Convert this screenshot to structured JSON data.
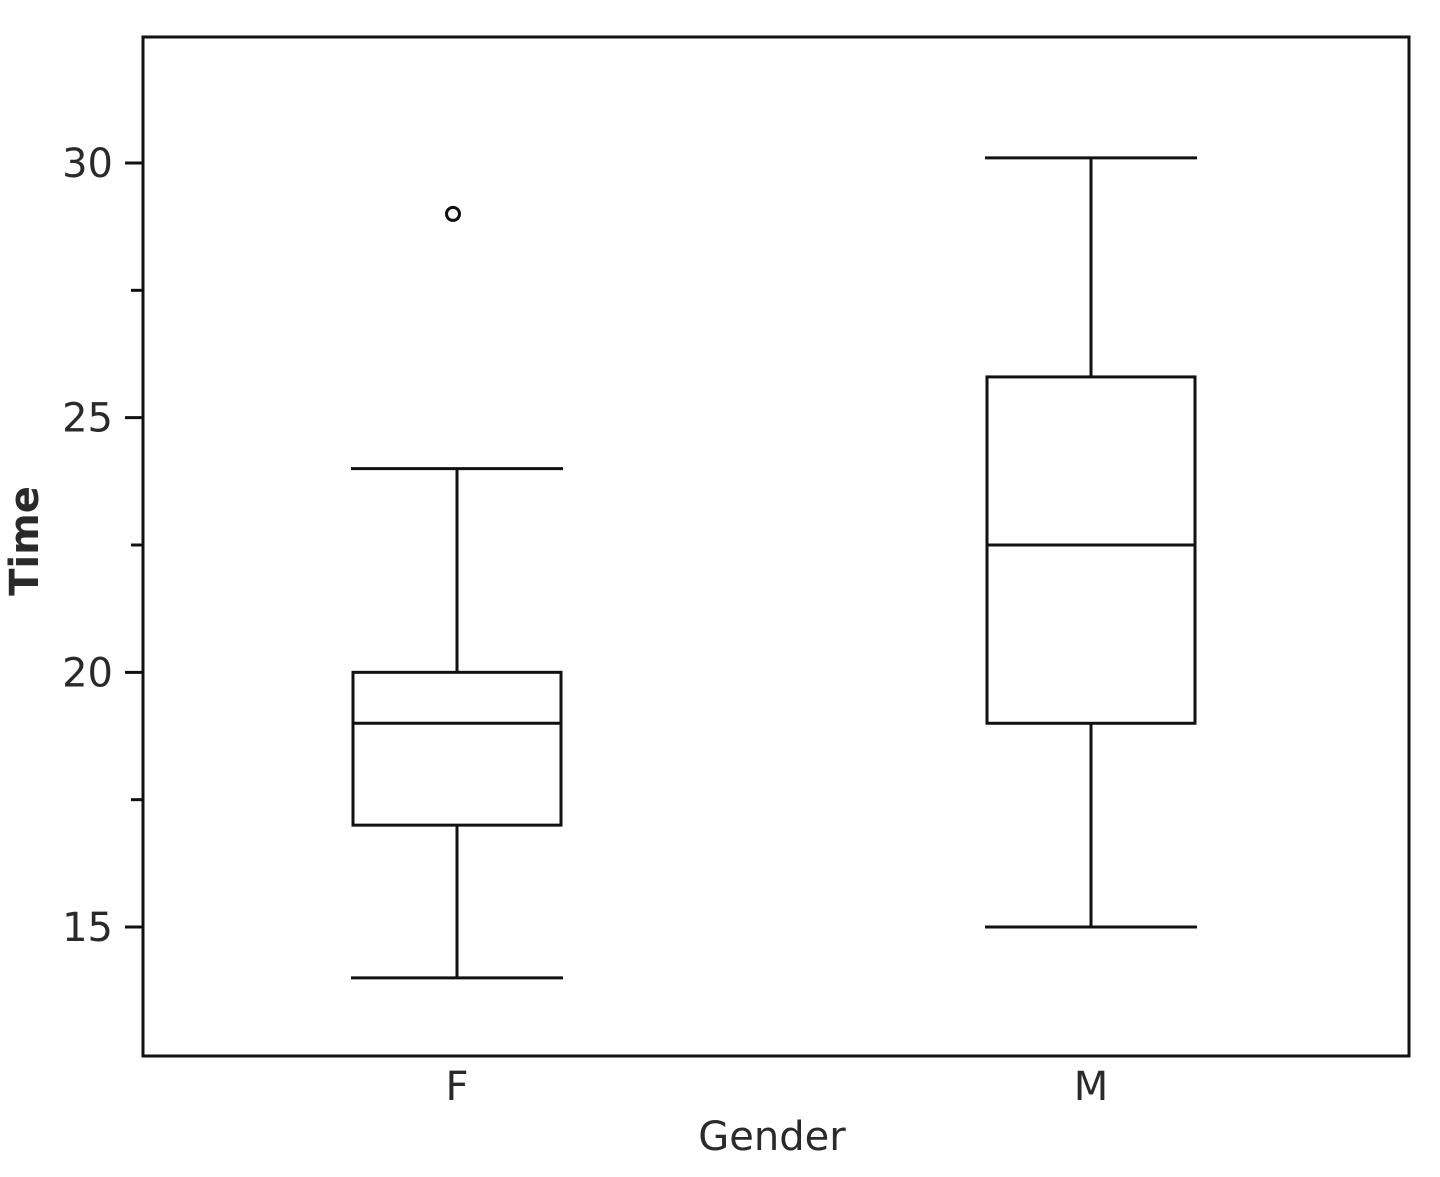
{
  "chart_data": {
    "type": "box",
    "xlabel": "Gender",
    "ylabel": "Time",
    "categories": [
      "F",
      "M"
    ],
    "ylim": [
      12.5,
      32.5
    ],
    "y_ticks": [
      15,
      20,
      25,
      30
    ],
    "y_minor_ticks": [
      17.5,
      22.5,
      27.5
    ],
    "grid": false,
    "boxes": [
      {
        "category": "F",
        "whisker_low": 14,
        "q1": 17,
        "median": 19,
        "q3": 20,
        "whisker_high": 24,
        "outliers": [
          29
        ]
      },
      {
        "category": "M",
        "whisker_low": 15,
        "q1": 19,
        "median": 22.5,
        "q3": 25.8,
        "whisker_high": 30.1,
        "outliers": []
      }
    ]
  }
}
